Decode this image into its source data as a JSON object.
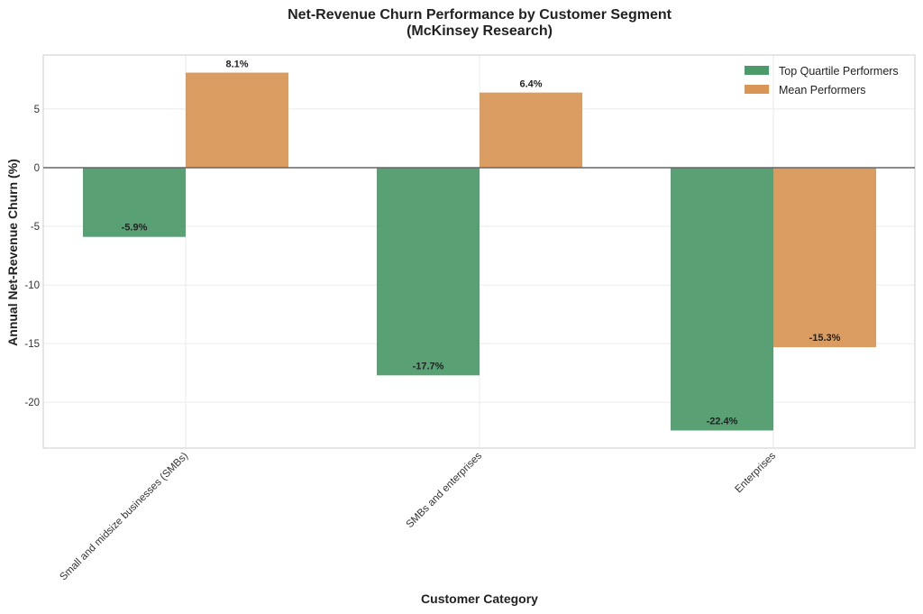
{
  "chart_data": {
    "type": "bar",
    "title": "Net-Revenue Churn Performance by Customer Segment",
    "subtitle": "(McKinsey Research)",
    "xlabel": "Customer Category",
    "ylabel": "Annual Net-Revenue Churn (%)",
    "categories": [
      "Small and midsize businesses (SMBs)",
      "SMBs and enterprises",
      "Enterprises"
    ],
    "series": [
      {
        "name": "Top Quartile Performers",
        "color": "#4c9a6a",
        "values": [
          -5.9,
          -17.7,
          -22.4
        ],
        "labels": [
          "-5.9%",
          "-17.7%",
          "-22.4%"
        ]
      },
      {
        "name": "Mean Performers",
        "color": "#d89555",
        "values": [
          8.1,
          6.4,
          -15.3
        ],
        "labels": [
          "8.1%",
          "6.4%",
          "-15.3%"
        ]
      }
    ],
    "ylim": [
      -23.9,
      9.6
    ],
    "yticks": [
      5,
      0,
      -5,
      -10,
      -15,
      -20
    ],
    "ytick_labels": [
      "5",
      "0",
      "-5",
      "-10",
      "-15",
      "-20"
    ],
    "grid": true,
    "legend_position": "top-right"
  }
}
